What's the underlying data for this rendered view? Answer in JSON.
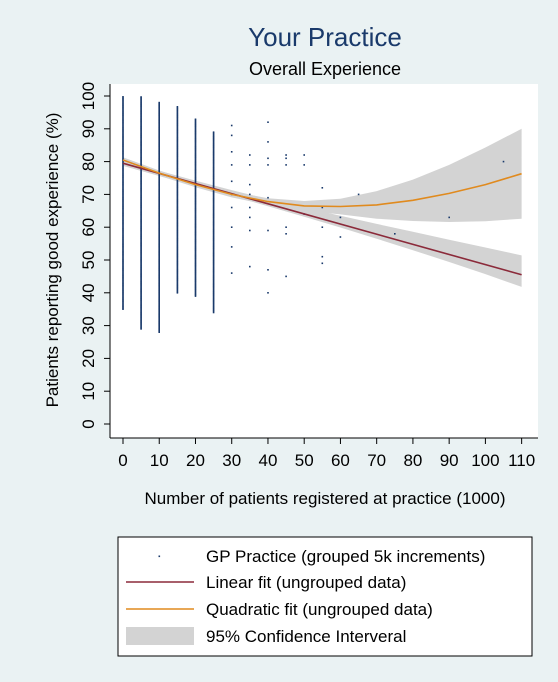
{
  "chart_data": {
    "type": "scatter",
    "title": "Your Practice",
    "subtitle": "Overall Experience",
    "xlabel": "Number of patients registered at practice (1000)",
    "ylabel": "Patients reporting good experience (%)",
    "xlim": [
      0,
      110
    ],
    "ylim": [
      0,
      100
    ],
    "xticks": [
      "0",
      "10",
      "20",
      "30",
      "40",
      "50",
      "60",
      "70",
      "80",
      "90",
      "100",
      "110"
    ],
    "yticks": [
      "0",
      "10",
      "20",
      "30",
      "40",
      "50",
      "60",
      "70",
      "80",
      "90",
      "100"
    ],
    "grid": false,
    "legend_position": "bottom",
    "colors": {
      "background": "#eaf2f3",
      "scatter": "#1a3a6b",
      "linear": "#8b2a3a",
      "quadratic": "#e08a1e",
      "ci": "#d3d3d3"
    },
    "series": [
      {
        "name": "GP Practice (grouped 5k increments)",
        "type": "scatter",
        "columns": [
          {
            "x": 0,
            "ymin": 35,
            "ymax": 100
          },
          {
            "x": 5,
            "ymin": 29,
            "ymax": 100
          },
          {
            "x": 10,
            "ymin": 28,
            "ymax": 98
          },
          {
            "x": 15,
            "ymin": 40,
            "ymax": 97
          },
          {
            "x": 20,
            "ymin": 39,
            "ymax": 93
          },
          {
            "x": 25,
            "ymin": 34,
            "ymax": 89
          }
        ],
        "points": [
          [
            30,
            91
          ],
          [
            30,
            88
          ],
          [
            30,
            83
          ],
          [
            30,
            79
          ],
          [
            30,
            74
          ],
          [
            30,
            70
          ],
          [
            30,
            66
          ],
          [
            30,
            60
          ],
          [
            30,
            54
          ],
          [
            30,
            46
          ],
          [
            35,
            82
          ],
          [
            35,
            79
          ],
          [
            35,
            73
          ],
          [
            35,
            70
          ],
          [
            35,
            66
          ],
          [
            35,
            63
          ],
          [
            35,
            59
          ],
          [
            35,
            48
          ],
          [
            40,
            92
          ],
          [
            40,
            86
          ],
          [
            40,
            81
          ],
          [
            40,
            79
          ],
          [
            40,
            69
          ],
          [
            40,
            59
          ],
          [
            40,
            47
          ],
          [
            40,
            40
          ],
          [
            45,
            82
          ],
          [
            45,
            81
          ],
          [
            45,
            79
          ],
          [
            45,
            60
          ],
          [
            45,
            58
          ],
          [
            45,
            45
          ],
          [
            50,
            82
          ],
          [
            50,
            79
          ],
          [
            50,
            64
          ],
          [
            55,
            72
          ],
          [
            55,
            66
          ],
          [
            55,
            60
          ],
          [
            55,
            51
          ],
          [
            55,
            49
          ],
          [
            60,
            63
          ],
          [
            60,
            57
          ],
          [
            65,
            70
          ],
          [
            75,
            58
          ],
          [
            90,
            63
          ],
          [
            105,
            80
          ]
        ]
      },
      {
        "name": "Linear fit (ungrouped data)",
        "type": "line",
        "x": [
          0,
          110
        ],
        "y": [
          79.5,
          45.5
        ]
      },
      {
        "name": "Quadratic fit (ungrouped data)",
        "type": "line",
        "x": [
          0,
          10,
          20,
          30,
          40,
          50,
          60,
          70,
          80,
          90,
          100,
          110
        ],
        "y": [
          80.5,
          76.5,
          73.0,
          70.0,
          67.8,
          66.5,
          66.3,
          66.8,
          68.2,
          70.3,
          73.0,
          76.3
        ]
      },
      {
        "name": "95% Confidence Interveral",
        "type": "band",
        "x": [
          0,
          10,
          20,
          30,
          40,
          50,
          60,
          70,
          80,
          90,
          100,
          110
        ],
        "upper_linear": [
          80.3,
          77.2,
          74.2,
          71.3,
          68.6,
          66.0,
          63.5,
          61.0,
          58.6,
          56.2,
          53.8,
          51.4
        ],
        "lower_linear": [
          78.7,
          75.6,
          72.6,
          69.5,
          66.4,
          63.2,
          59.9,
          56.5,
          53.0,
          49.4,
          45.7,
          41.8
        ],
        "upper_quadratic": [
          81.3,
          77.3,
          73.8,
          70.9,
          68.8,
          68.0,
          68.7,
          71.0,
          74.5,
          79.0,
          84.3,
          90.0
        ],
        "lower_quadratic": [
          79.7,
          75.7,
          72.2,
          69.1,
          66.8,
          65.0,
          63.9,
          62.6,
          61.9,
          61.6,
          61.8,
          62.6
        ]
      }
    ]
  }
}
